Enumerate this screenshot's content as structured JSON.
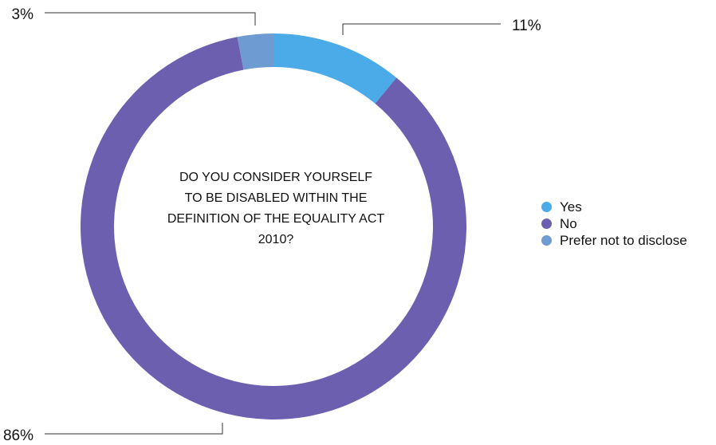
{
  "chart_data": {
    "type": "pie",
    "variant": "donut",
    "title_lines": [
      "DO YOU CONSIDER YOURSELF",
      "TO BE DISABLED WITHIN THE",
      "DEFINITION OF THE EQUALITY ACT",
      "2010?"
    ],
    "slices": [
      {
        "label": "Yes",
        "value": 11,
        "display": "11%",
        "color": "#4AABE8"
      },
      {
        "label": "No",
        "value": 86,
        "display": "86%",
        "color": "#6C5FAF"
      },
      {
        "label": "Prefer not to disclose",
        "value": 3,
        "display": "3%",
        "color": "#6E9BD2"
      }
    ],
    "legend_position": "right"
  }
}
